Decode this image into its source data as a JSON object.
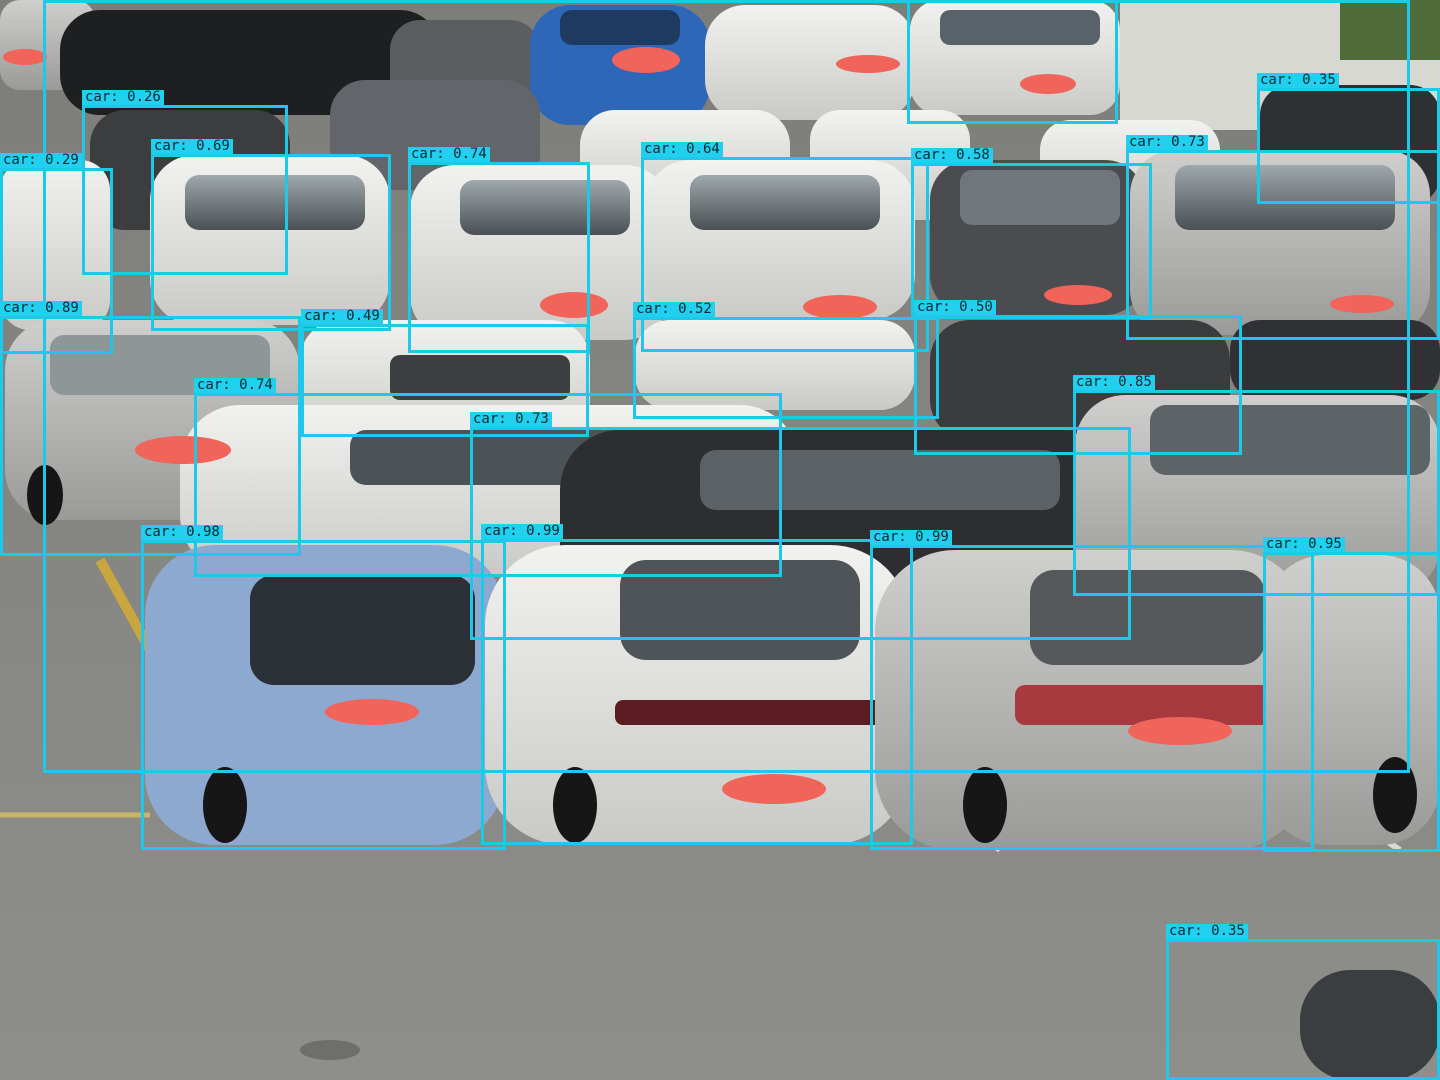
{
  "image": {
    "description_name": "parking-lot-photo",
    "accent_color": "#1ec8e8",
    "label_bg_color": "#20d0ee",
    "plate_redaction_color": "#f0645a",
    "asphalt_color": "#8b8b88"
  },
  "detections": [
    {
      "label": "car: 0.26"
    },
    {
      "label": "car: 0.69"
    },
    {
      "label": "car: 0.29"
    },
    {
      "label": "car: 0.74"
    },
    {
      "label": "car: 0.64"
    },
    {
      "label": "car: 0.58"
    },
    {
      "label": "car: 0.73"
    },
    {
      "label": "car: 0.35"
    },
    {
      "label": "car: 0.89"
    },
    {
      "label": "car: 0.49"
    },
    {
      "label": "car: 0.52"
    },
    {
      "label": "car: 0.50"
    },
    {
      "label": "car: 0.74"
    },
    {
      "label": "car: 0.85"
    },
    {
      "label": "car: 0.73"
    },
    {
      "label": "car: 0.98"
    },
    {
      "label": "car: 0.99"
    },
    {
      "label": "car: 0.99"
    },
    {
      "label": "car: 0.95"
    },
    {
      "label": "car: 0.35"
    }
  ]
}
